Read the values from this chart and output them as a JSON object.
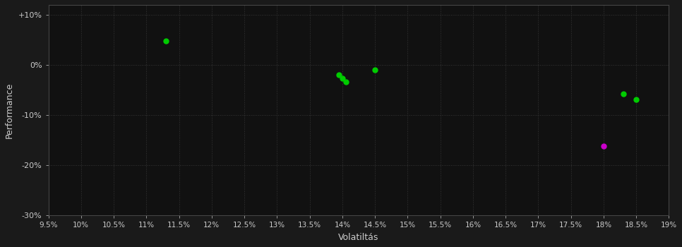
{
  "background_color": "#1a1a1a",
  "plot_bg_color": "#111111",
  "grid_color": "#3a3a3a",
  "text_color": "#cccccc",
  "xlabel": "Volatiltás",
  "ylabel": "Performance",
  "xlim": [
    0.095,
    0.19
  ],
  "ylim": [
    -0.3,
    0.12
  ],
  "xticks": [
    0.095,
    0.1,
    0.105,
    0.11,
    0.115,
    0.12,
    0.125,
    0.13,
    0.135,
    0.14,
    0.145,
    0.15,
    0.155,
    0.16,
    0.165,
    0.17,
    0.175,
    0.18,
    0.185,
    0.19
  ],
  "xtick_labels": [
    "9.5%",
    "10%",
    "10.5%",
    "11%",
    "11.5%",
    "12%",
    "12.5%",
    "13%",
    "13.5%",
    "14%",
    "14.5%",
    "15%",
    "15.5%",
    "16%",
    "16.5%",
    "17%",
    "17.5%",
    "18%",
    "18.5%",
    "19%"
  ],
  "yticks": [
    0.1,
    0.0,
    -0.1,
    -0.2,
    -0.3
  ],
  "ytick_labels": [
    "+10%",
    "0%",
    "-10%",
    "-20%",
    "-30%"
  ],
  "green_points": [
    [
      0.113,
      0.048
    ],
    [
      0.1395,
      -0.02
    ],
    [
      0.14,
      -0.027
    ],
    [
      0.1405,
      -0.033
    ],
    [
      0.145,
      -0.01
    ],
    [
      0.183,
      -0.058
    ],
    [
      0.185,
      -0.068
    ]
  ],
  "magenta_points": [
    [
      0.18,
      -0.162
    ]
  ],
  "green_color": "#00cc00",
  "magenta_color": "#cc00cc",
  "marker_size": 25
}
